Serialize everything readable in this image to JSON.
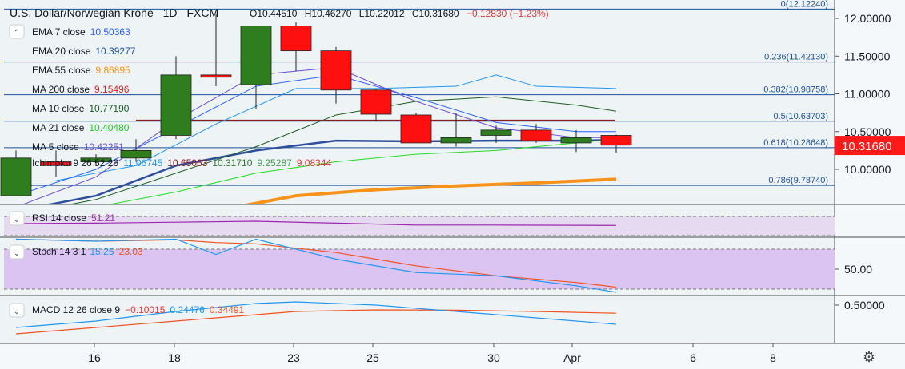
{
  "header": {
    "symbol": "U.S. Dollar/Norwegian Krone",
    "interval": "1D",
    "source": "FXCM",
    "o": "O10.44510",
    "h": "H10.46270",
    "l": "L10.22012",
    "c": "C10.31680",
    "chg": "−0.12830 (−1.23%)"
  },
  "price_axis": {
    "ticks": [
      "12.00000",
      "11.50000",
      "11.00000",
      "10.50000",
      "10.00000"
    ],
    "current_price": "10.31680",
    "current_color": "#ff1a1a"
  },
  "time_axis": {
    "ticks": [
      "16",
      "18",
      "23",
      "25",
      "30",
      "Apr",
      "6",
      "8"
    ]
  },
  "legend": [
    {
      "name": "EMA 7 close",
      "value": "10.50363",
      "color": "#2962ff"
    },
    {
      "name": "EMA 20 close",
      "value": "10.39277",
      "color": "#1e4fa0"
    },
    {
      "name": "EMA 55 close",
      "value": "9.86895",
      "color": "#f7931a"
    },
    {
      "name": "MA 200 close",
      "value": "9.15496",
      "color": "#e02020"
    },
    {
      "name": "MA 10 close",
      "value": "10.77190",
      "color": "#1b5e20"
    },
    {
      "name": "MA 21 close",
      "value": "10.40480",
      "color": "#22cc22"
    },
    {
      "name": "MA 5 close",
      "value": "10.42251",
      "color": "#6b4bd6"
    }
  ],
  "ichimoku": {
    "name": "Ichimoku 9 26 52 26",
    "values": [
      {
        "v": "11.06745",
        "color": "#2196f3"
      },
      {
        "v": "10.65063",
        "color": "#8b1a1a"
      },
      {
        "v": "10.31710",
        "color": "#2e7d32"
      },
      {
        "v": "9.25287",
        "color": "#43a047"
      },
      {
        "v": "9.08344",
        "color": "#e53935"
      }
    ]
  },
  "fib_labels": [
    "0(12.12240)",
    "0.236(11.42130)",
    "0.382(10.98758)",
    "0.5(10.63703)",
    "0.618(10.28648)",
    "0.786(9.78740)"
  ],
  "rsi": {
    "name": "RSI 14 close",
    "value": "51.21",
    "color": "#9c27b0"
  },
  "stoch": {
    "name": "Stoch 14 3 1",
    "k": "15.25",
    "d": "23.03",
    "k_color": "#2196f3",
    "d_color": "#f4511e",
    "tick": "50.00"
  },
  "macd": {
    "name": "MACD 12 26 close 9",
    "macd": "−0.10015",
    "signal": "0.24476",
    "hist": "0.34491",
    "tick": "0.50000"
  },
  "chart_data": {
    "type": "candlestick",
    "y_axis_range": [
      9.55,
      12.15
    ],
    "fib_levels": [
      12.1224,
      11.4213,
      10.98758,
      10.63703,
      10.28648,
      9.7874
    ],
    "ichimoku_base_line": 10.65,
    "candles": [
      {
        "x": 0,
        "o": 9.65,
        "h": 10.25,
        "l": 9.65,
        "c": 10.15
      },
      {
        "x": 1,
        "o": 10.1,
        "h": 10.25,
        "l": 9.9,
        "c": 10.05
      },
      {
        "x": 2,
        "o": 10.1,
        "h": 10.2,
        "l": 10.05,
        "c": 10.15
      },
      {
        "x": 3,
        "o": 10.15,
        "h": 10.4,
        "l": 10.1,
        "c": 10.25
      },
      {
        "x": 4,
        "o": 10.45,
        "h": 11.5,
        "l": 10.4,
        "c": 11.25
      },
      {
        "x": 5,
        "o": 11.25,
        "h": 12.05,
        "l": 11.1,
        "c": 11.22
      },
      {
        "x": 6,
        "o": 11.12,
        "h": 11.9,
        "l": 10.8,
        "c": 11.9
      },
      {
        "x": 7,
        "o": 11.9,
        "h": 11.95,
        "l": 11.3,
        "c": 11.57
      },
      {
        "x": 8,
        "o": 11.57,
        "h": 11.62,
        "l": 10.87,
        "c": 11.05
      },
      {
        "x": 9,
        "o": 11.05,
        "h": 11.07,
        "l": 10.65,
        "c": 10.73
      },
      {
        "x": 10,
        "o": 10.72,
        "h": 10.75,
        "l": 10.35,
        "c": 10.35
      },
      {
        "x": 11,
        "o": 10.35,
        "h": 10.75,
        "l": 10.3,
        "c": 10.42
      },
      {
        "x": 12,
        "o": 10.45,
        "h": 10.58,
        "l": 10.35,
        "c": 10.52
      },
      {
        "x": 13,
        "o": 10.52,
        "h": 10.6,
        "l": 10.35,
        "c": 10.38
      },
      {
        "x": 14,
        "o": 10.35,
        "h": 10.52,
        "l": 10.23,
        "c": 10.42
      },
      {
        "x": 15,
        "o": 10.45,
        "h": 10.46,
        "l": 10.22,
        "c": 10.32
      }
    ],
    "indicators": {
      "ema7": {
        "x": [
          0,
          2,
          4,
          6,
          8,
          10,
          12,
          14,
          15
        ],
        "y": [
          9.65,
          10.0,
          10.55,
          11.1,
          11.25,
          10.95,
          10.62,
          10.5,
          10.5
        ]
      },
      "ema20": {
        "x": [
          0,
          2,
          4,
          6,
          8,
          10,
          12,
          14,
          15
        ],
        "y": [
          9.45,
          9.65,
          10.05,
          10.25,
          10.38,
          10.37,
          10.38,
          10.38,
          10.39
        ]
      },
      "ema55": {
        "x": [
          5,
          7,
          9,
          11,
          13,
          15
        ],
        "y": [
          9.45,
          9.65,
          9.73,
          9.78,
          9.82,
          9.87
        ]
      },
      "ma10": {
        "x": [
          0,
          2,
          4,
          6,
          8,
          10,
          12,
          14,
          15
        ],
        "y": [
          9.4,
          9.6,
          9.95,
          10.3,
          10.72,
          10.9,
          10.96,
          10.85,
          10.77
        ]
      },
      "ma21": {
        "x": [
          0,
          2,
          4,
          6,
          8,
          10,
          12,
          14,
          15
        ],
        "y": [
          9.35,
          9.5,
          9.7,
          9.95,
          10.1,
          10.2,
          10.25,
          10.35,
          10.4
        ]
      },
      "ma5": {
        "x": [
          0,
          2,
          4,
          6,
          8,
          10,
          12,
          14,
          15
        ],
        "y": [
          9.5,
          9.9,
          10.65,
          11.25,
          11.35,
          10.9,
          10.55,
          10.42,
          10.42
        ]
      },
      "ichimoku_conversion": {
        "x": [
          1,
          3,
          5,
          7,
          9,
          11,
          12,
          13,
          15
        ],
        "y": [
          9.85,
          10.05,
          10.6,
          11.07,
          11.07,
          11.1,
          11.25,
          11.1,
          11.07
        ]
      }
    },
    "rsi": {
      "x": [
        0,
        2,
        4,
        6,
        8,
        10,
        12,
        14,
        15
      ],
      "y": [
        55,
        56,
        58,
        60,
        56,
        52,
        52,
        51.5,
        51.21
      ]
    },
    "stoch": {
      "x": [
        0,
        2,
        4,
        5,
        6,
        8,
        10,
        12,
        14,
        15
      ],
      "k": [
        95,
        92,
        95,
        72,
        95,
        65,
        45,
        40,
        25,
        15.25
      ],
      "d": [
        95,
        92,
        94,
        90,
        88,
        75,
        55,
        40,
        30,
        23.03
      ]
    },
    "macd": {
      "x": [
        0,
        2,
        4,
        6,
        7,
        9,
        11,
        13,
        15
      ],
      "macd": [
        -0.2,
        0.0,
        0.3,
        0.55,
        0.6,
        0.5,
        0.3,
        0.1,
        -0.10015
      ],
      "signal": [
        -0.4,
        -0.2,
        0.0,
        0.2,
        0.3,
        0.35,
        0.34,
        0.3,
        0.24476
      ]
    }
  }
}
